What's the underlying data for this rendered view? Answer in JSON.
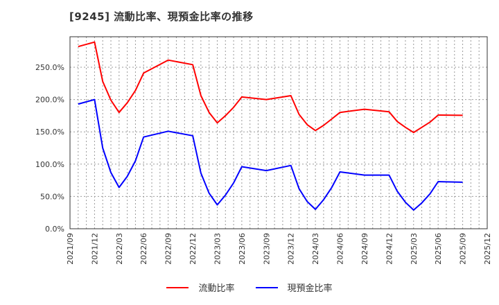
{
  "title": "[9245]  流動比率、現預金比率の推移",
  "chart_data": {
    "type": "line",
    "title": "[9245]  流動比率、現預金比率の推移",
    "xlabel": "",
    "ylabel": "",
    "ylim": [
      0,
      300
    ],
    "yticks": [
      "0.0%",
      "50.0%",
      "100.0%",
      "150.0%",
      "200.0%",
      "250.0%"
    ],
    "ytick_values": [
      0,
      50,
      100,
      150,
      200,
      250
    ],
    "xticks": [
      "2021/09",
      "2021/12",
      "2022/03",
      "2022/06",
      "2022/09",
      "2022/12",
      "2023/03",
      "2023/06",
      "2023/09",
      "2023/12",
      "2024/03",
      "2024/06",
      "2024/09",
      "2024/12",
      "2025/03",
      "2025/06",
      "2025/09",
      "2025/12"
    ],
    "grid": true,
    "legend_position": "bottom",
    "x": [
      "2021/10",
      "2021/12",
      "2022/01",
      "2022/02",
      "2022/03",
      "2022/04",
      "2022/05",
      "2022/06",
      "2022/09",
      "2022/12",
      "2023/01",
      "2023/02",
      "2023/03",
      "2023/04",
      "2023/05",
      "2023/06",
      "2023/09",
      "2023/12",
      "2024/01",
      "2024/02",
      "2024/03",
      "2024/04",
      "2024/05",
      "2024/06",
      "2024/09",
      "2024/12",
      "2025/01",
      "2025/02",
      "2025/03",
      "2025/04",
      "2025/05",
      "2025/06",
      "2025/09"
    ],
    "series": [
      {
        "name": "流動比率",
        "color": "#ff0000",
        "values": [
          282,
          289,
          228,
          199,
          180,
          195,
          214,
          241,
          261,
          254,
          206,
          180,
          164,
          175,
          188,
          204,
          200,
          206,
          177,
          161,
          152,
          160,
          170,
          180,
          185,
          181,
          166,
          157,
          149,
          157,
          165,
          176,
          175.5
        ]
      },
      {
        "name": "現預金比率",
        "color": "#0000ff",
        "values": [
          193,
          200,
          125,
          87,
          64,
          81,
          105,
          142,
          151,
          144,
          86,
          55,
          37,
          52,
          71,
          96,
          90,
          98,
          62,
          42,
          30,
          45,
          64,
          88,
          83,
          83,
          58,
          41,
          29,
          40,
          54,
          73,
          72
        ]
      }
    ]
  }
}
